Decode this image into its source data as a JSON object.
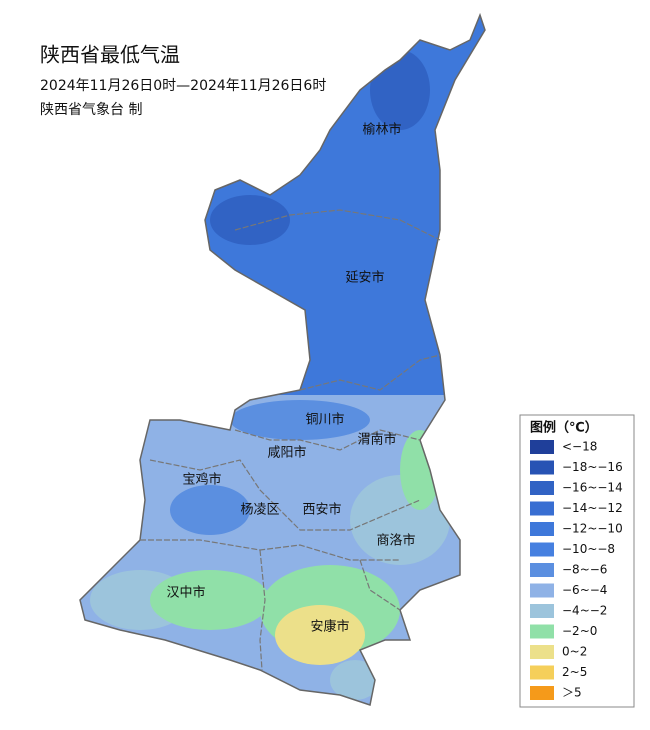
{
  "header": {
    "title": "陕西省最低气温",
    "time": "2024年11月26日0时—2024年11月26日6时",
    "issuer": "陕西省气象台 制"
  },
  "cities": [
    {
      "label": "榆林市"
    },
    {
      "label": "延安市"
    },
    {
      "label": "铜川市"
    },
    {
      "label": "渭南市"
    },
    {
      "label": "咸阳市"
    },
    {
      "label": "宝鸡市"
    },
    {
      "label": "杨凌区"
    },
    {
      "label": "西安市"
    },
    {
      "label": "商洛市"
    },
    {
      "label": "汉中市"
    },
    {
      "label": "安康市"
    }
  ],
  "legend": {
    "title": "图例（℃）",
    "items": [
      {
        "label": "<−18",
        "color": "#1f3f9a"
      },
      {
        "label": "−18~−16",
        "color": "#2753b4"
      },
      {
        "label": "−16~−14",
        "color": "#3163c4"
      },
      {
        "label": "−14~−12",
        "color": "#386ed2"
      },
      {
        "label": "−12~−10",
        "color": "#3e78da"
      },
      {
        "label": "−10~−8",
        "color": "#4680e0"
      },
      {
        "label": "−8~−6",
        "color": "#5b8fe0"
      },
      {
        "label": "−6~−4",
        "color": "#8fb2e6"
      },
      {
        "label": "−4~−2",
        "color": "#9cc4dc"
      },
      {
        "label": "−2~0",
        "color": "#90e0a8"
      },
      {
        "label": "0~2",
        "color": "#ece08a"
      },
      {
        "label": "2~5",
        "color": "#f5cf5a"
      },
      {
        "label": "＞5",
        "color": "#f59a1a"
      }
    ]
  }
}
